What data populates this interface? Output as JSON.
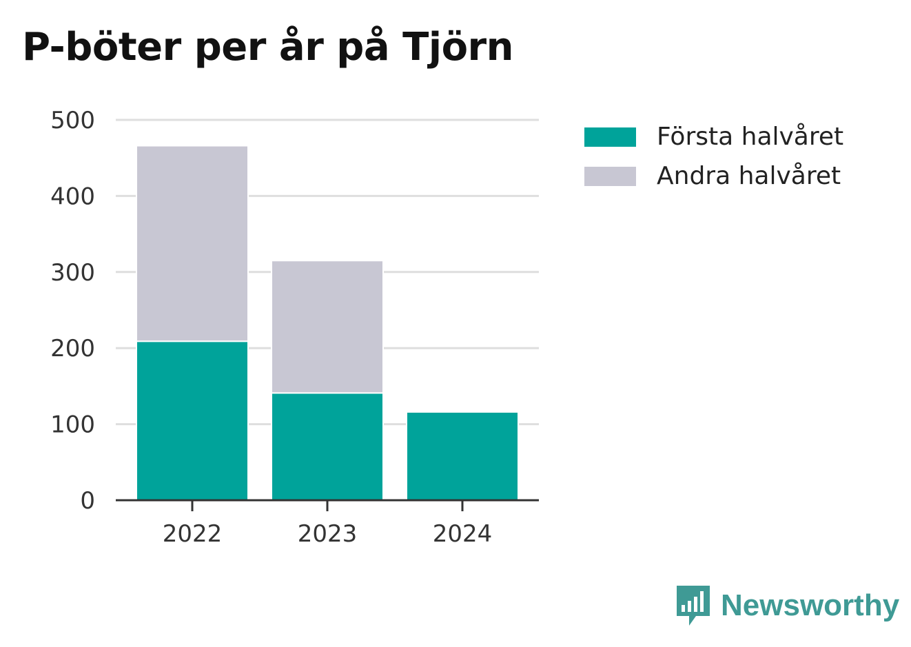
{
  "title": "P-böter per år på Tjörn",
  "brand": {
    "name": "Newsworthy",
    "icon": "newsworthy-logo-icon",
    "color": "#3f9a95"
  },
  "legend": [
    {
      "label": "Första halvåret",
      "color": "#00a39a"
    },
    {
      "label": "Andra halvåret",
      "color": "#c8c7d3"
    }
  ],
  "chart_data": {
    "type": "bar",
    "stacked": true,
    "title": "P-böter per år på Tjörn",
    "categories": [
      "2022",
      "2023",
      "2024"
    ],
    "series": [
      {
        "name": "Första halvåret",
        "values": [
          209,
          141,
          116
        ],
        "color": "#00a39a"
      },
      {
        "name": "Andra halvåret",
        "values": [
          257,
          174,
          0
        ],
        "color": "#c8c7d3"
      }
    ],
    "yticks": [
      0,
      100,
      200,
      300,
      400,
      500
    ],
    "ylim": [
      0,
      500
    ],
    "xlabel": "",
    "ylabel": "",
    "grid": true,
    "legend_position": "right"
  }
}
